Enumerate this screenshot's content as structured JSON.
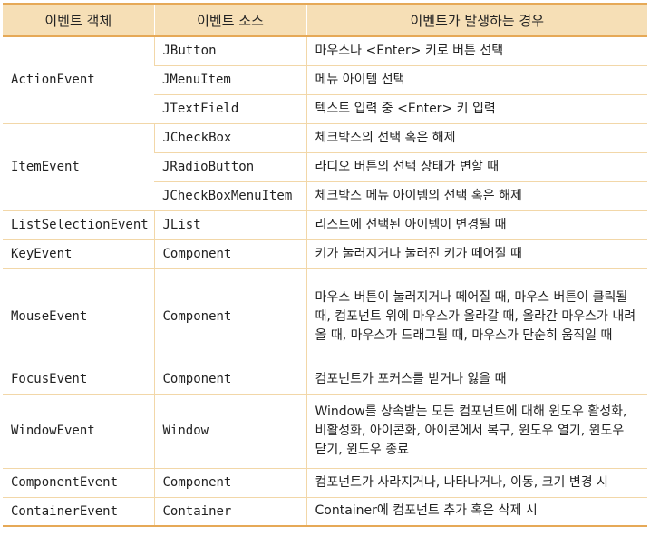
{
  "table": {
    "headers": [
      "이벤트 객체",
      "이벤트 소스",
      "이벤트가 발생하는 경우"
    ],
    "groups": [
      {
        "event": "ActionEvent",
        "rows": [
          {
            "source": "JButton",
            "cause": "마우스나 <Enter> 키로 버튼 선택"
          },
          {
            "source": "JMenuItem",
            "cause": "메뉴 아이템 선택"
          },
          {
            "source": "JTextField",
            "cause": "텍스트 입력 중 <Enter> 키 입력"
          }
        ]
      },
      {
        "event": "ItemEvent",
        "rows": [
          {
            "source": "JCheckBox",
            "cause": "체크박스의 선택 혹은 해제"
          },
          {
            "source": "JRadioButton",
            "cause": "라디오 버튼의 선택 상태가 변할 때"
          },
          {
            "source": "JCheckBoxMenuItem",
            "cause": "체크박스 메뉴 아이템의 선택 혹은 해제"
          }
        ]
      },
      {
        "event": "ListSelectionEvent",
        "rows": [
          {
            "source": "JList",
            "cause": "리스트에 선택된 아이템이 변경될 때"
          }
        ]
      },
      {
        "event": "KeyEvent",
        "rows": [
          {
            "source": "Component",
            "cause": "키가 눌러지거나 눌러진 키가 떼어질 때"
          }
        ]
      },
      {
        "event": "MouseEvent",
        "rows": [
          {
            "source": "Component",
            "cause": "마우스 버튼이 눌러지거나 떼어질 때, 마우스 버튼이 클릭될 때, 컴포넌트 위에 마우스가 올라갈 때, 올라간 마우스가 내려올 때, 마우스가 드래그될 때, 마우스가 단순히 움직일 때"
          }
        ]
      },
      {
        "event": "FocusEvent",
        "rows": [
          {
            "source": "Component",
            "cause": "컴포넌트가 포커스를 받거나 잃을 때"
          }
        ]
      },
      {
        "event": "WindowEvent",
        "rows": [
          {
            "source": "Window",
            "cause": "Window를 상속받는 모든 컴포넌트에 대해 윈도우 활성화, 비활성화, 아이콘화, 아이콘에서 복구, 윈도우 열기, 윈도우 닫기, 윈도우 종료"
          }
        ]
      },
      {
        "event": "ComponentEvent",
        "rows": [
          {
            "source": "Component",
            "cause": "컴포넌트가 사라지거나, 나타나거나, 이동, 크기 변경 시"
          }
        ]
      },
      {
        "event": "ContainerEvent",
        "rows": [
          {
            "source": "Container",
            "cause": "Container에 컴포넌트 추가 혹은 삭제 시"
          }
        ]
      }
    ]
  },
  "colors": {
    "header_bg": "#f6dfb6",
    "rule": "#e6a957",
    "grid": "#f2d7a8"
  }
}
